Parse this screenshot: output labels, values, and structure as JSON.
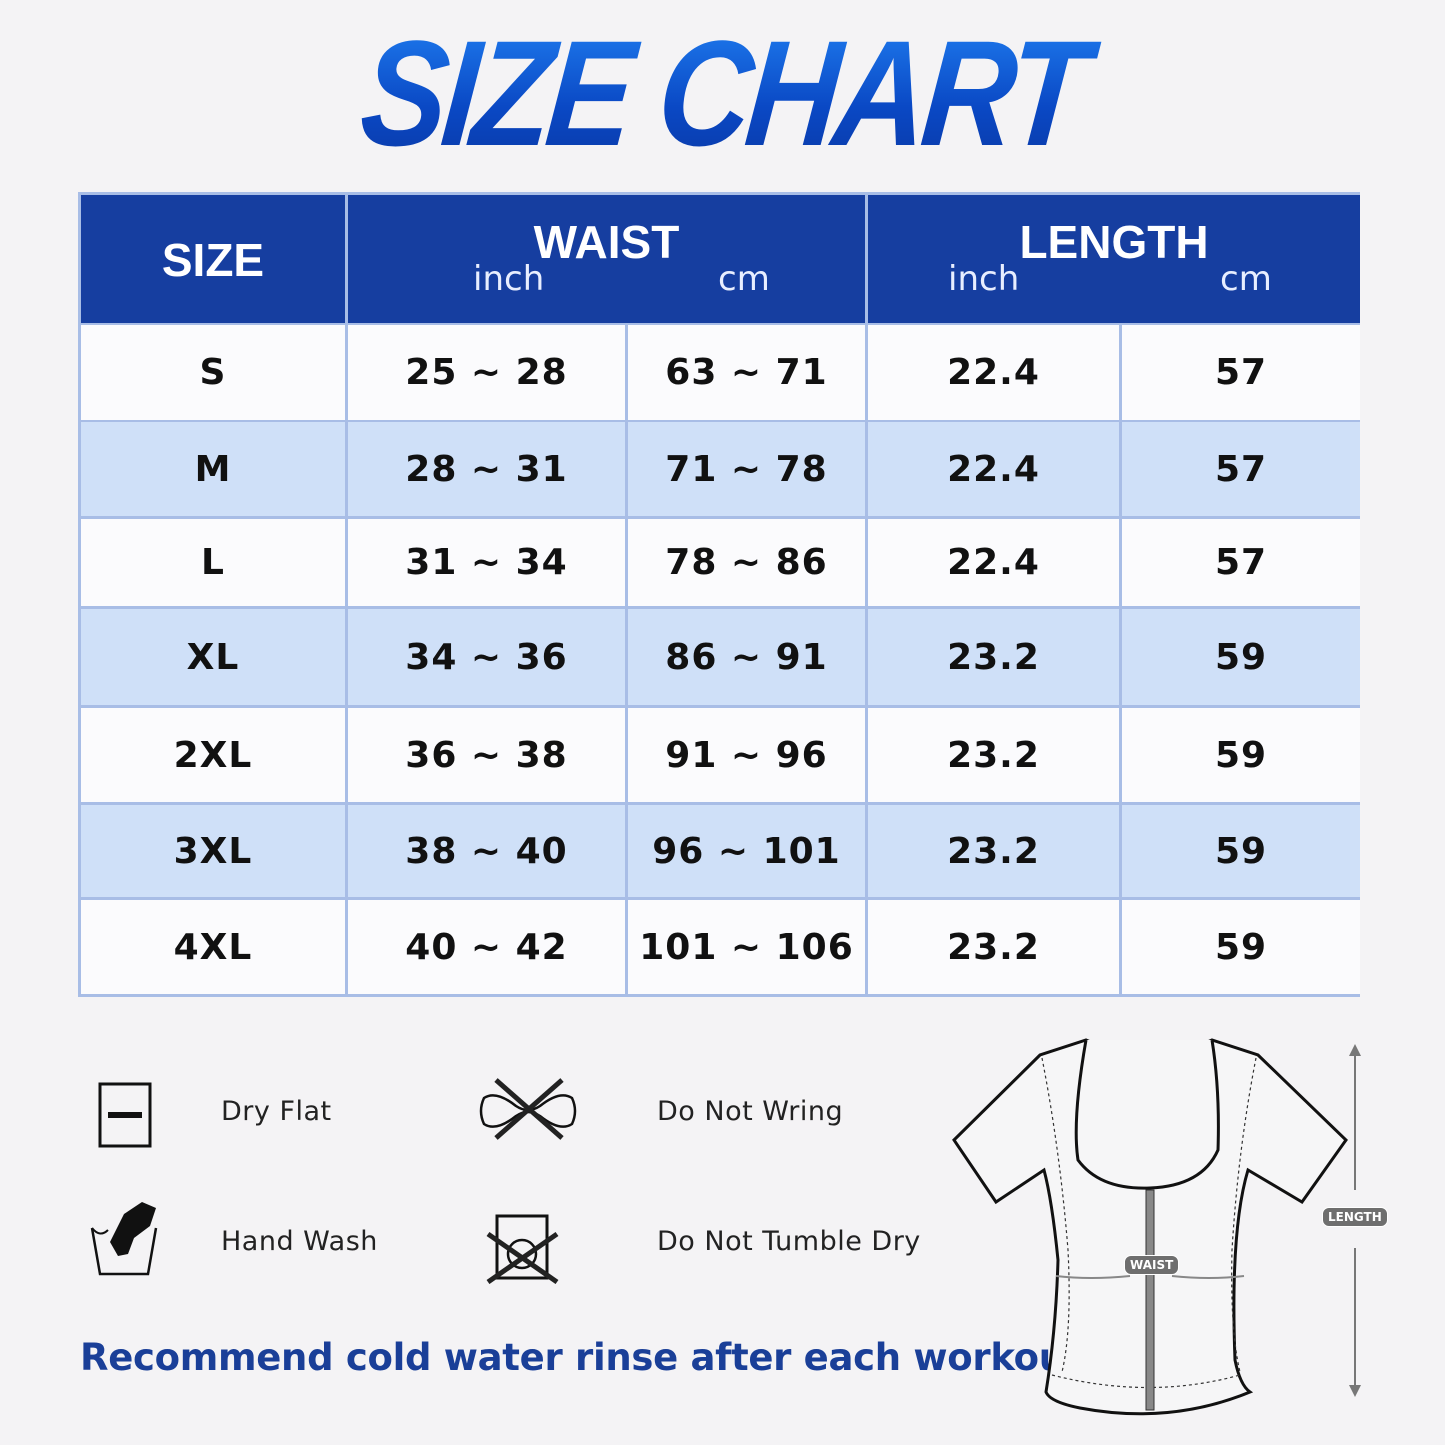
{
  "title": "SIZE CHART",
  "header": {
    "size": "SIZE",
    "waist": "WAIST",
    "length": "LENGTH",
    "inch": "inch",
    "cm": "cm"
  },
  "rows": [
    {
      "size": "S",
      "waist_inch": "25 ~ 28",
      "waist_cm": "63 ~ 71",
      "length_inch": "22.4",
      "length_cm": "57"
    },
    {
      "size": "M",
      "waist_inch": "28 ~ 31",
      "waist_cm": "71 ~ 78",
      "length_inch": "22.4",
      "length_cm": "57"
    },
    {
      "size": "L",
      "waist_inch": "31 ~ 34",
      "waist_cm": "78 ~ 86",
      "length_inch": "22.4",
      "length_cm": "57"
    },
    {
      "size": "XL",
      "waist_inch": "34 ~ 36",
      "waist_cm": "86 ~ 91",
      "length_inch": "23.2",
      "length_cm": "59"
    },
    {
      "size": "2XL",
      "waist_inch": "36 ~ 38",
      "waist_cm": "91 ~ 96",
      "length_inch": "23.2",
      "length_cm": "59"
    },
    {
      "size": "3XL",
      "waist_inch": "38 ~ 40",
      "waist_cm": "96 ~ 101",
      "length_inch": "23.2",
      "length_cm": "59"
    },
    {
      "size": "4XL",
      "waist_inch": "40 ~ 42",
      "waist_cm": "101 ~ 106",
      "length_inch": "23.2",
      "length_cm": "59"
    }
  ],
  "care": {
    "dry_flat": "Dry Flat",
    "do_not_wring": "Do Not Wring",
    "hand_wash": "Hand Wash",
    "do_not_tumble_dry": "Do Not Tumble Dry"
  },
  "note": "Recommend cold water rinse after each workout.",
  "diagram": {
    "waist_label": "WAIST",
    "length_label": "LENGTH"
  },
  "colors": {
    "header": "#163ea0",
    "row_alt": "#cfe0f8",
    "title": "#0a48c4",
    "note": "#1a3f98"
  }
}
